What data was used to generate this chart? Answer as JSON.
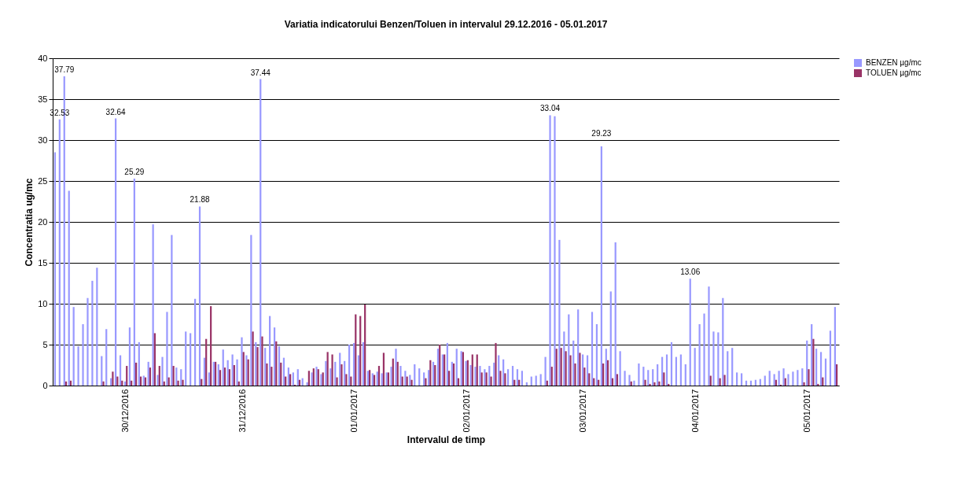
{
  "chart_data": {
    "type": "bar",
    "title": "Variatia indicatorului Benzen/Toluen in intervalul 29.12.2016 - 05.01.2017",
    "xlabel": "Intervalul de timp",
    "ylabel": "Concentratia ug/mc",
    "categories": [
      null,
      null,
      null,
      null,
      null,
      null,
      null,
      null,
      null,
      null,
      null,
      null,
      null,
      null,
      null,
      "30/12/2016",
      null,
      null,
      null,
      null,
      null,
      null,
      null,
      null,
      null,
      null,
      null,
      null,
      null,
      null,
      null,
      null,
      null,
      null,
      null,
      null,
      null,
      null,
      null,
      null,
      "31/12/2016",
      null,
      null,
      null,
      null,
      null,
      null,
      null,
      null,
      null,
      null,
      null,
      null,
      null,
      null,
      null,
      null,
      null,
      null,
      null,
      null,
      null,
      null,
      null,
      "01/01/2017",
      null,
      null,
      null,
      null,
      null,
      null,
      null,
      null,
      null,
      null,
      null,
      null,
      null,
      null,
      null,
      null,
      null,
      null,
      null,
      null,
      null,
      null,
      null,
      "02/01/2017",
      null,
      null,
      null,
      null,
      null,
      null,
      null,
      null,
      null,
      null,
      null,
      null,
      null,
      null,
      null,
      null,
      null,
      null,
      null,
      null,
      null,
      null,
      null,
      null,
      "03/01/2017",
      null,
      null,
      null,
      null,
      null,
      null,
      null,
      null,
      null,
      null,
      null,
      null,
      null,
      null,
      null,
      null,
      null,
      null,
      null,
      null,
      null,
      null,
      null,
      "04/01/2017",
      null,
      null,
      null,
      null,
      null,
      null,
      null,
      null,
      null,
      null,
      null,
      null,
      null,
      null,
      null,
      null,
      null,
      null,
      null,
      null,
      null,
      null,
      null,
      "05/01/2017",
      null,
      null,
      null,
      null,
      null,
      null
    ],
    "series": [
      {
        "name": "BENZEN µg/mc",
        "color": "#9999ff",
        "values": [
          28.5,
          32.53,
          37.79,
          23.8,
          9.6,
          4.8,
          7.5,
          10.7,
          12.8,
          14.4,
          3.6,
          6.9,
          0.9,
          32.64,
          3.7,
          0.5,
          7.1,
          25.29,
          5.3,
          1.2,
          2.9,
          19.7,
          1.3,
          3.5,
          9.0,
          18.4,
          2.2,
          2.0,
          6.6,
          6.4,
          10.6,
          21.88,
          3.4,
          1.6,
          2.9,
          2.6,
          4.4,
          3.1,
          3.8,
          3.2,
          5.9,
          3.7,
          18.4,
          5.3,
          37.44,
          4.6,
          8.5,
          7.1,
          4.8,
          3.4,
          2.2,
          1.6,
          2.0,
          0.9,
          0.4,
          1.6,
          2.3,
          1.4,
          3.0,
          2.1,
          2.9,
          4.0,
          3.0,
          5.0,
          5.2,
          3.7,
          5.3,
          1.8,
          1.5,
          1.7,
          1.5,
          1.6,
          2.3,
          4.5,
          2.4,
          1.8,
          1.3,
          2.6,
          2.1,
          1.6,
          1.9,
          2.9,
          4.5,
          3.8,
          5.2,
          2.9,
          4.5,
          4.2,
          3.0,
          2.5,
          2.3,
          2.4,
          2.0,
          2.4,
          2.8,
          3.7,
          3.2,
          2.0,
          2.4,
          2.0,
          1.8,
          0.4,
          1.1,
          1.2,
          1.4,
          3.5,
          33.04,
          32.9,
          17.8,
          6.6,
          8.7,
          5.5,
          9.3,
          3.8,
          3.7,
          9.0,
          7.5,
          29.23,
          4.5,
          11.5,
          17.5,
          4.2,
          1.8,
          1.3,
          0.6,
          2.7,
          2.3,
          1.9,
          2.0,
          2.6,
          3.5,
          3.8,
          5.3,
          3.5,
          3.8,
          2.6,
          13.06,
          4.6,
          7.5,
          8.8,
          12.1,
          6.6,
          6.5,
          10.7,
          4.2,
          4.6,
          1.6,
          1.5,
          0.6,
          0.6,
          0.7,
          0.8,
          1.2,
          1.8,
          1.4,
          1.8,
          2.1,
          1.4,
          1.7,
          1.9,
          2.1,
          5.5,
          7.5,
          4.5,
          4.1,
          3.3,
          6.7,
          9.6
        ],
        "value_labels": [
          null,
          "32.53",
          "37.79",
          null,
          null,
          null,
          null,
          null,
          null,
          null,
          null,
          null,
          null,
          "32.64",
          null,
          null,
          null,
          "25.29",
          null,
          null,
          null,
          null,
          null,
          null,
          null,
          null,
          null,
          null,
          null,
          null,
          null,
          "21.88",
          null,
          null,
          null,
          null,
          null,
          null,
          null,
          null,
          null,
          null,
          null,
          null,
          "37.44",
          null,
          null,
          null,
          null,
          null,
          null,
          null,
          null,
          null,
          null,
          null,
          null,
          null,
          null,
          null,
          null,
          null,
          null,
          null,
          null,
          null,
          null,
          null,
          null,
          null,
          null,
          null,
          null,
          null,
          null,
          null,
          null,
          null,
          null,
          null,
          null,
          null,
          null,
          null,
          null,
          null,
          null,
          null,
          null,
          null,
          null,
          null,
          null,
          null,
          null,
          null,
          null,
          null,
          null,
          null,
          null,
          null,
          null,
          null,
          null,
          null,
          "33.04",
          null,
          null,
          null,
          null,
          null,
          null,
          null,
          null,
          null,
          null,
          "29.23",
          null,
          null,
          null,
          null,
          null,
          null,
          null,
          null,
          null,
          null,
          null,
          null,
          null,
          null,
          null,
          null,
          null,
          null,
          "13.06",
          null,
          null,
          null,
          null,
          null,
          null,
          null,
          null,
          null,
          null,
          null,
          null,
          null,
          null,
          null,
          null,
          null,
          null,
          null,
          null,
          null,
          null,
          null,
          null,
          null,
          null,
          null,
          null,
          null,
          null,
          null
        ]
      },
      {
        "name": "TOLUEN µg/mc",
        "color": "#993366",
        "values": [
          null,
          null,
          0.5,
          0.6,
          null,
          null,
          null,
          null,
          null,
          null,
          0.5,
          null,
          1.7,
          1.1,
          0.6,
          2.4,
          0.6,
          2.8,
          1.1,
          1.0,
          2.2,
          6.4,
          2.4,
          0.5,
          1.0,
          2.4,
          0.6,
          0.7,
          null,
          null,
          null,
          0.8,
          5.7,
          9.7,
          2.9,
          1.9,
          2.2,
          2.0,
          2.5,
          0.5,
          4.1,
          3.2,
          6.6,
          4.7,
          6.0,
          2.7,
          2.3,
          5.4,
          2.8,
          1.1,
          1.4,
          0.1,
          0.7,
          null,
          1.8,
          2.1,
          2.0,
          1.6,
          4.1,
          3.8,
          1.0,
          2.6,
          1.4,
          1.1,
          8.7,
          8.5,
          9.9,
          1.9,
          1.3,
          2.4,
          4.0,
          1.6,
          3.3,
          2.9,
          1.1,
          1.1,
          0.7,
          null,
          null,
          0.9,
          3.1,
          2.5,
          5.0,
          3.8,
          1.8,
          2.7,
          0.9,
          4.1,
          3.1,
          3.8,
          3.8,
          1.6,
          1.6,
          1.1,
          5.2,
          1.8,
          1.5,
          null,
          0.7,
          0.7,
          null,
          null,
          null,
          null,
          null,
          0.6,
          2.3,
          4.5,
          4.6,
          4.2,
          3.7,
          2.7,
          4.0,
          2.2,
          1.5,
          0.9,
          0.7,
          2.7,
          3.1,
          0.9,
          1.4,
          null,
          null,
          0.5,
          null,
          null,
          0.7,
          0.2,
          0.4,
          0.5,
          1.6,
          0.2,
          null,
          null,
          null,
          null,
          null,
          null,
          null,
          null,
          1.2,
          null,
          0.9,
          1.3,
          null,
          null,
          null,
          null,
          null,
          null,
          null,
          null,
          null,
          null,
          0.7,
          0.1,
          0.9,
          null,
          null,
          null,
          0.4,
          2.0,
          5.7,
          0.2,
          1.0,
          null,
          null,
          2.6
        ]
      }
    ],
    "ylim": [
      0,
      40
    ],
    "yticks": [
      0,
      5,
      10,
      15,
      20,
      25,
      30,
      35,
      40
    ],
    "grid": "y",
    "legend": "right"
  }
}
